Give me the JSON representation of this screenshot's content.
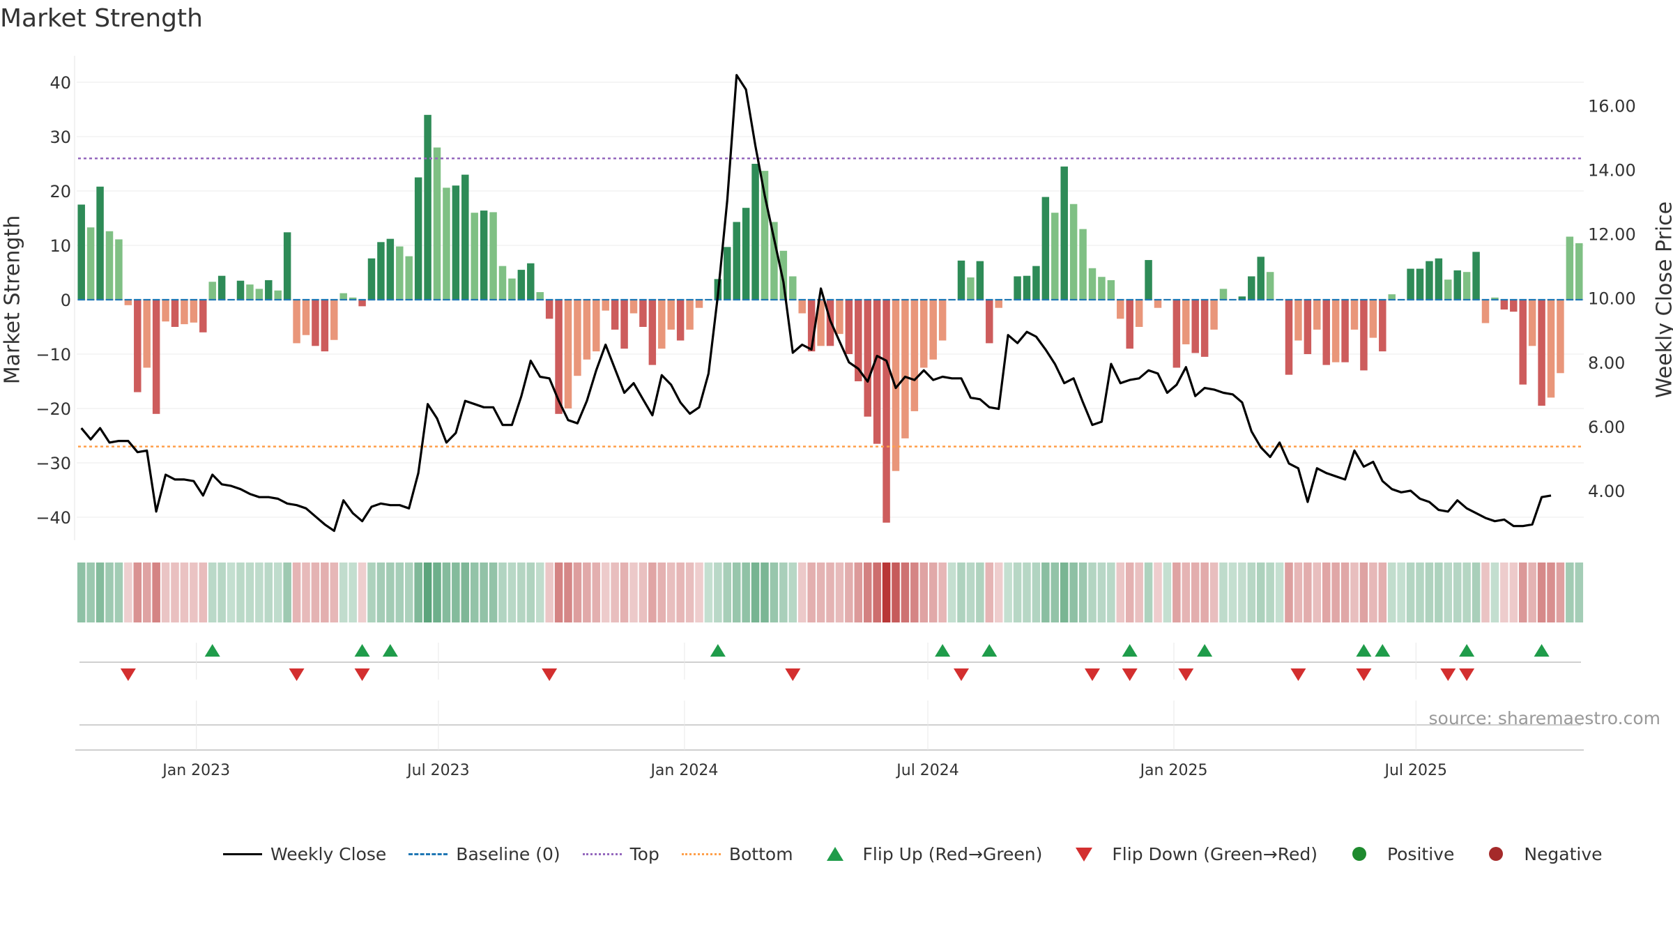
{
  "title": "Market Strength",
  "source": "source: sharemaestro.com",
  "legend": [
    {
      "label": "Weekly Close",
      "kind": "line-solid",
      "color": "#000000"
    },
    {
      "label": "Baseline (0)",
      "kind": "line-dash",
      "color": "#1f77b4"
    },
    {
      "label": "Top",
      "kind": "line-dot",
      "color": "#9467bd"
    },
    {
      "label": "Bottom",
      "kind": "line-dot",
      "color": "#ff9f4a"
    },
    {
      "label": "Flip Up (Red→Green)",
      "kind": "tri-up",
      "color": "#1f9c4a"
    },
    {
      "label": "Flip Down (Green→Red)",
      "kind": "tri-down",
      "color": "#d32f2f"
    },
    {
      "label": "Positive",
      "kind": "dot",
      "color": "#1e8a2e"
    },
    {
      "label": "Negative",
      "kind": "dot",
      "color": "#a52a2a"
    }
  ],
  "colors": {
    "pos_strong": "#2e8b57",
    "pos_weak": "#7fc084",
    "neg_strong": "#cd5c5c",
    "neg_weak": "#e9967a",
    "weekly_close": "#000000",
    "top_line": "#9467bd",
    "bottom_line": "#ff9f4a",
    "baseline": "#1f77b4",
    "flip_up": "#1f9c4a",
    "flip_down": "#d32f2f"
  },
  "chart_data": {
    "type": "bar",
    "title": "Market Strength",
    "start_date": "2022-10-07",
    "interval_days": 7,
    "x_ticks": [
      "Jan 2023",
      "Jul 2023",
      "Jan 2024",
      "Jul 2024",
      "Jan 2025",
      "Jul 2025"
    ],
    "ylabel": "Market Strength",
    "ylim": [
      -44,
      44
    ],
    "yticks": [
      40,
      30,
      20,
      10,
      0,
      -10,
      -20,
      -30,
      -40
    ],
    "ytick_labels": [
      "40",
      "30",
      "20",
      "10",
      "0",
      "−10",
      "−20",
      "−30",
      "−40"
    ],
    "y2label": "Weekly Close Price",
    "y2lim": [
      2.55,
      17.4
    ],
    "y2ticks": [
      16,
      14,
      12,
      10,
      8,
      6,
      4
    ],
    "y2tick_labels": [
      "16.00",
      "14.00",
      "12.00",
      "10.00",
      "8.00",
      "6.00",
      "4.00"
    ],
    "top": 26,
    "bottom": -27,
    "baseline": 0,
    "grid": true,
    "legend_position": "bottom",
    "series": [
      {
        "name": "Market Strength",
        "kind": "bar",
        "values": [
          17.5,
          13.3,
          20.8,
          12.6,
          11.1,
          -1,
          -17,
          -12.5,
          -21,
          -4,
          -5,
          -4.5,
          -4.2,
          -6,
          3.3,
          4.4,
          0,
          3.5,
          2.8,
          2,
          3.6,
          1.7,
          12.4,
          -8,
          -6.5,
          -8.5,
          -9.5,
          -7.4,
          1.2,
          0.4,
          -1.2,
          7.6,
          10.6,
          11.2,
          9.8,
          8,
          22.5,
          34,
          28,
          20.6,
          21,
          23,
          16,
          16.4,
          16.1,
          6.2,
          3.9,
          5.5,
          6.7,
          1.4,
          -3.5,
          -21,
          -20,
          -14,
          -11,
          -9.5,
          -2,
          -5.5,
          -9,
          -2.5,
          -5,
          -12,
          -9,
          -5.5,
          -7.5,
          -5.5,
          -1.5,
          0,
          3.8,
          9.7,
          14.3,
          16.9,
          25,
          23.7,
          14.3,
          9,
          4.3,
          -2.5,
          -9.5,
          -8.5,
          -8.5,
          -6.3,
          -10,
          -15,
          -21.5,
          -26.5,
          -41,
          -31.5,
          -25.5,
          -20.5,
          -12.5,
          -11,
          -7.5,
          0,
          7.2,
          4.1,
          7.1,
          -8,
          -1.5,
          0,
          4.3,
          4.4,
          6.2,
          18.9,
          16,
          24.5,
          17.6,
          13,
          5.8,
          4.2,
          3.6,
          -3.5,
          -9,
          -5,
          7.3,
          -1.5,
          0,
          -12.5,
          -8.2,
          -9.8,
          -10.5,
          -5.5,
          2,
          0,
          0.6,
          4.3,
          7.9,
          5.1,
          0,
          -13.8,
          -7.5,
          -10,
          -5.5,
          -12,
          -11.5,
          -11.5,
          -5.5,
          -13,
          -7,
          -9.5,
          1,
          0,
          5.7,
          5.7,
          7.1,
          7.6,
          3.7,
          5.4,
          5.1,
          8.8,
          -4.3,
          0.4,
          -1.8,
          -2.2,
          -15.6,
          -8.5,
          -19.5,
          -18,
          -13.5,
          11.6,
          10.4
        ]
      },
      {
        "name": "Weekly Close",
        "kind": "line",
        "values": [
          5.95,
          5.6,
          5.95,
          5.5,
          5.55,
          5.55,
          5.2,
          5.25,
          3.35,
          4.5,
          4.35,
          4.35,
          4.3,
          3.85,
          4.5,
          4.2,
          4.15,
          4.05,
          3.9,
          3.8,
          3.8,
          3.75,
          3.6,
          3.55,
          3.45,
          3.2,
          2.95,
          2.75,
          3.7,
          3.3,
          3.05,
          3.5,
          3.6,
          3.55,
          3.55,
          3.45,
          4.55,
          6.7,
          6.25,
          5.5,
          5.8,
          6.8,
          6.7,
          6.6,
          6.6,
          6.05,
          6.05,
          6.95,
          8.05,
          7.55,
          7.5,
          6.8,
          6.2,
          6.1,
          6.8,
          7.75,
          8.55,
          7.8,
          7.05,
          7.35,
          6.85,
          6.35,
          7.6,
          7.3,
          6.75,
          6.4,
          6.6,
          7.65,
          10.1,
          13.05,
          16.95,
          16.5,
          14.75,
          13.2,
          11.85,
          10.5,
          8.3,
          8.55,
          8.4,
          10.3,
          9.3,
          8.65,
          8,
          7.8,
          7.4,
          8.2,
          8.05,
          7.2,
          7.55,
          7.45,
          7.75,
          7.45,
          7.55,
          7.5,
          7.5,
          6.9,
          6.85,
          6.6,
          6.55,
          8.85,
          8.6,
          8.95,
          8.8,
          8.4,
          7.95,
          7.35,
          7.5,
          6.75,
          6.05,
          6.15,
          7.95,
          7.35,
          7.45,
          7.5,
          7.75,
          7.65,
          7.05,
          7.3,
          7.85,
          6.95,
          7.2,
          7.15,
          7.05,
          7.0,
          6.75,
          5.85,
          5.35,
          5.05,
          5.5,
          4.85,
          4.7,
          3.65,
          4.7,
          4.55,
          4.45,
          4.35,
          5.25,
          4.75,
          4.9,
          4.3,
          4.05,
          3.95,
          4.0,
          3.75,
          3.65,
          3.4,
          3.35,
          3.7,
          3.45,
          3.3,
          3.15,
          3.05,
          3.1,
          2.9,
          2.9,
          2.95,
          3.8,
          3.85
        ]
      }
    ],
    "flip_up_index": [
      14,
      30,
      33,
      68,
      92,
      97,
      112,
      120,
      137,
      139,
      148,
      156
    ],
    "flip_down_index": [
      5,
      23,
      30,
      50,
      76,
      94,
      108,
      112,
      118,
      130,
      137,
      146,
      148
    ]
  }
}
